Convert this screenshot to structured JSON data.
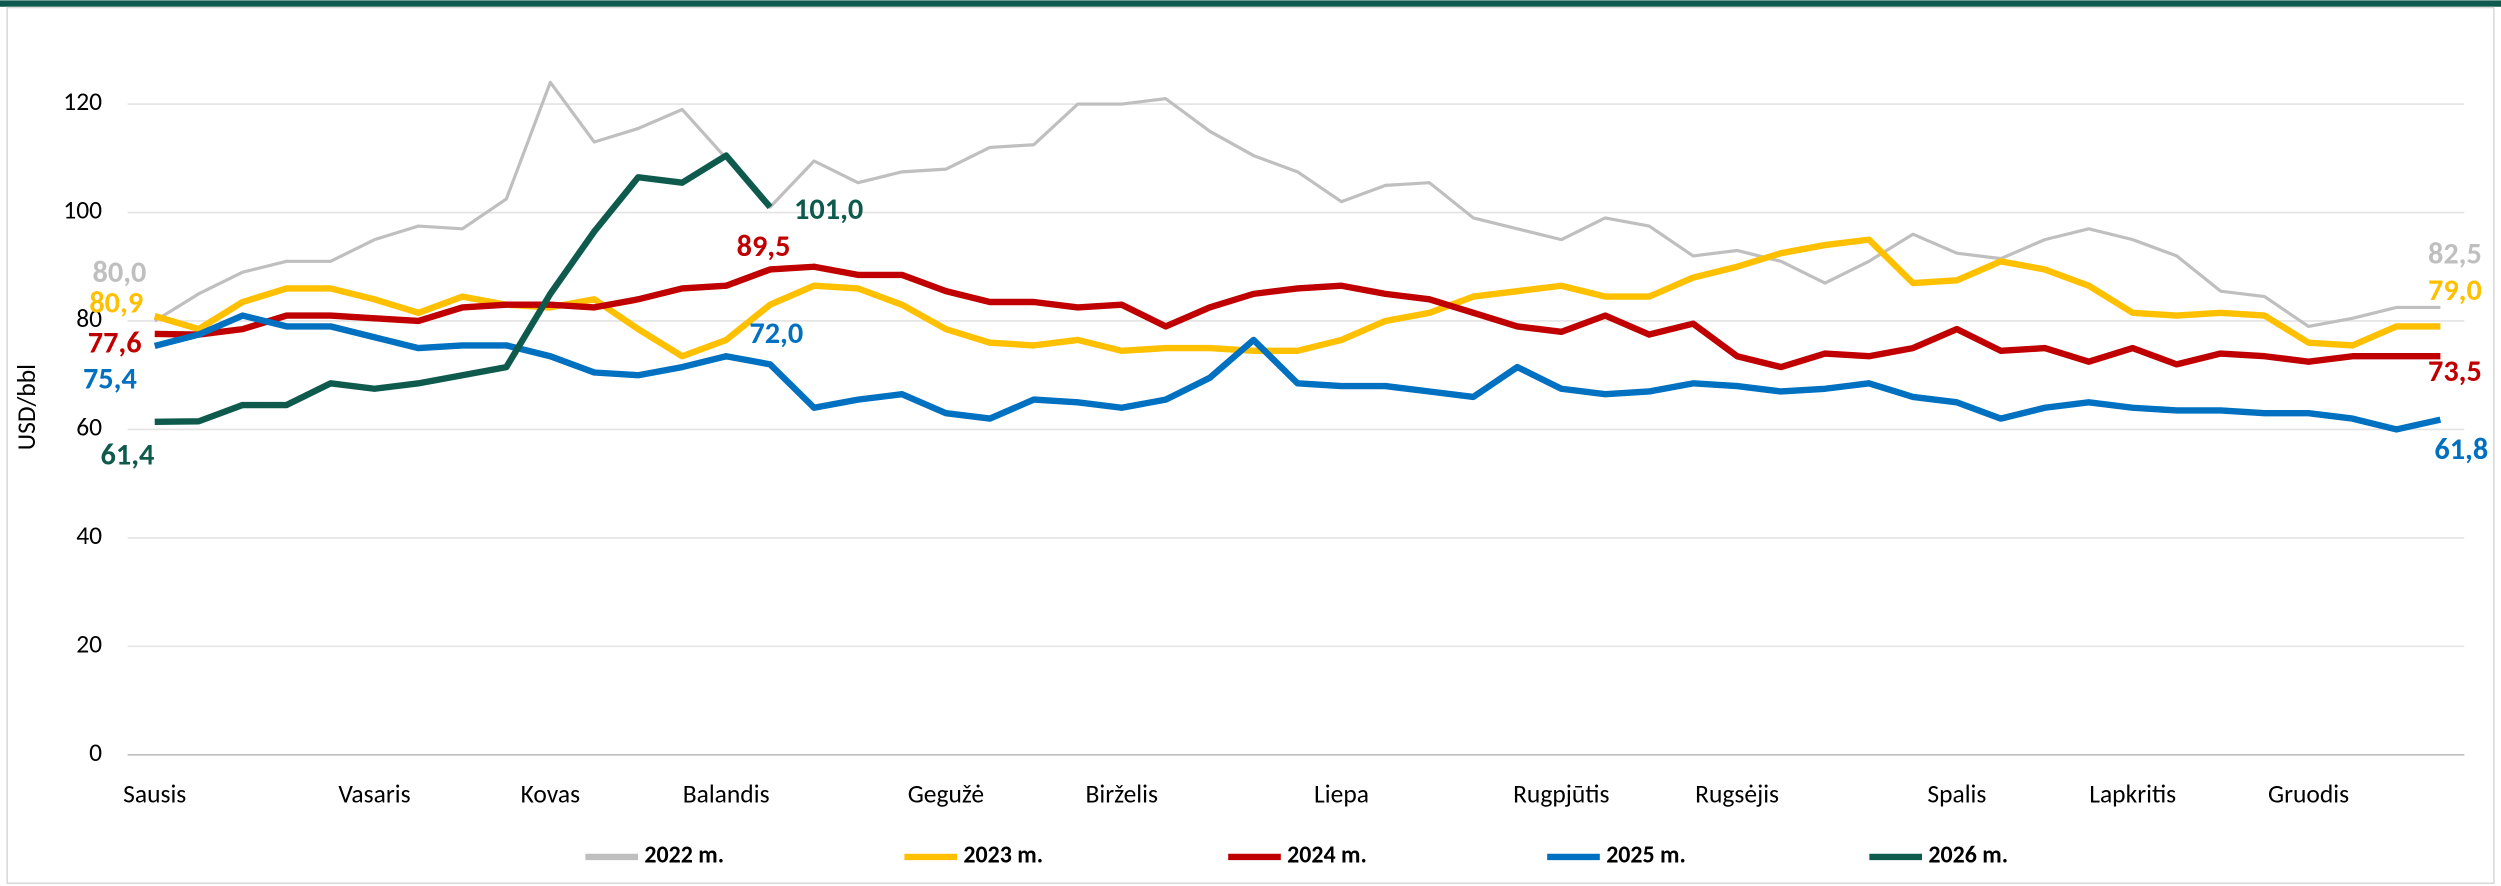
{
  "chart_data": {
    "type": "line",
    "y_label": "USD/bbl",
    "categories": [
      "Sausis",
      null,
      null,
      null,
      null,
      "Vasaris",
      null,
      null,
      null,
      "Kovas",
      null,
      null,
      null,
      "Balandis",
      null,
      null,
      null,
      null,
      "Gegužė",
      null,
      null,
      null,
      "Birželis",
      null,
      null,
      null,
      null,
      "Liepa",
      null,
      null,
      null,
      null,
      "Rugpjūtis",
      null,
      null,
      null,
      "Rugsėjis",
      null,
      null,
      null,
      null,
      "Spalis",
      null,
      null,
      null,
      "Lapkritis",
      null,
      null,
      null,
      "Gruodis",
      null,
      null,
      null
    ],
    "ylim": [
      0,
      130
    ],
    "yticks": [
      0,
      20,
      40,
      60,
      80,
      100,
      120
    ],
    "grid": true,
    "legend": "bottom",
    "series": [
      {
        "name": "2022 m.",
        "color": "#bfbfbf",
        "width": 2,
        "values": [
          80.0,
          85,
          89,
          91,
          91,
          95,
          97.5,
          97,
          102.5,
          124,
          113,
          115.5,
          119,
          110,
          101,
          109.5,
          105.5,
          107.5,
          108,
          112,
          112.5,
          120,
          120,
          121,
          115,
          110.5,
          107.5,
          102,
          105,
          105.5,
          99,
          97,
          95,
          99,
          97.5,
          92,
          93,
          91,
          87,
          91,
          96,
          92.5,
          91.5,
          95,
          97,
          95,
          92,
          85.5,
          84.5,
          79,
          80.5,
          82.5,
          82.5
        ],
        "value_labels": [
          "80,0",
          null,
          null,
          null,
          null,
          null,
          null,
          null,
          null,
          null,
          null,
          null,
          null,
          null,
          null,
          null,
          null,
          null,
          null,
          null,
          null,
          null,
          null,
          null,
          null,
          null,
          null,
          null,
          null,
          null,
          null,
          null,
          null,
          null,
          null,
          null,
          null,
          null,
          null,
          null,
          null,
          null,
          null,
          null,
          null,
          null,
          null,
          null,
          null,
          null,
          null,
          null,
          "82,5"
        ]
      },
      {
        "name": "2023 m.",
        "color": "#ffc000",
        "width": 4,
        "values": [
          80.9,
          78.5,
          83.5,
          86,
          86,
          84,
          81.5,
          84.5,
          83,
          82.5,
          84,
          78.5,
          73.5,
          76.5,
          83,
          86.5,
          86,
          83,
          78.5,
          76,
          75.5,
          76.5,
          74.5,
          75,
          75,
          74.5,
          74.5,
          76.5,
          80,
          81.5,
          84.5,
          85.5,
          86.5,
          84.5,
          84.5,
          88,
          90,
          92.5,
          94,
          95,
          87,
          87.5,
          91,
          89.5,
          86.5,
          81.5,
          81,
          81.5,
          81,
          76,
          75.5,
          79,
          79.0
        ],
        "value_labels": [
          "80,9",
          null,
          null,
          null,
          null,
          null,
          null,
          null,
          null,
          null,
          null,
          null,
          null,
          null,
          null,
          null,
          null,
          null,
          null,
          null,
          null,
          null,
          null,
          null,
          null,
          null,
          null,
          null,
          null,
          null,
          null,
          null,
          null,
          null,
          null,
          null,
          null,
          null,
          null,
          null,
          null,
          null,
          null,
          null,
          null,
          null,
          null,
          null,
          null,
          null,
          null,
          null,
          "79,0"
        ]
      },
      {
        "name": "2024 m.",
        "color": "#c00000",
        "width": 4,
        "values": [
          77.6,
          77.5,
          78.5,
          81,
          81,
          80.5,
          80,
          82.5,
          83,
          83,
          82.5,
          84,
          86,
          86.5,
          89.5,
          90,
          88.5,
          88.5,
          85.5,
          83.5,
          83.5,
          82.5,
          83,
          79,
          82.5,
          85,
          86,
          86.5,
          85,
          84,
          81.5,
          79,
          78,
          81,
          77.5,
          79.5,
          73.5,
          71.5,
          74,
          73.5,
          75,
          78.5,
          74.5,
          75,
          72.5,
          75,
          72,
          74,
          73.5,
          72.5,
          73.5,
          73.5,
          73.5
        ],
        "value_labels": [
          "77,6",
          null,
          null,
          null,
          null,
          null,
          null,
          null,
          null,
          null,
          null,
          null,
          null,
          null,
          "89,5",
          null,
          null,
          null,
          null,
          null,
          null,
          null,
          null,
          null,
          null,
          null,
          null,
          null,
          null,
          null,
          null,
          null,
          null,
          null,
          null,
          null,
          null,
          null,
          null,
          null,
          null,
          null,
          null,
          null,
          null,
          null,
          null,
          null,
          null,
          null,
          null,
          null,
          "73,5"
        ]
      },
      {
        "name": "2025 m.",
        "color": "#0070c0",
        "width": 4,
        "values": [
          75.4,
          77.5,
          81,
          79,
          79,
          77,
          75,
          75.5,
          75.5,
          73.5,
          70.5,
          70,
          71.5,
          73.5,
          72.0,
          64,
          65.5,
          66.5,
          63,
          62,
          65.5,
          65,
          64,
          65.5,
          69.5,
          76.5,
          68.5,
          68,
          68,
          67,
          66,
          71.5,
          67.5,
          66.5,
          67,
          68.5,
          68,
          67,
          67.5,
          68.5,
          66,
          65,
          62,
          64,
          65,
          64,
          63.5,
          63.5,
          63,
          63,
          62,
          60,
          61.8
        ],
        "value_labels": [
          "75,4",
          null,
          null,
          null,
          null,
          null,
          null,
          null,
          null,
          null,
          null,
          null,
          null,
          null,
          "72,0",
          null,
          null,
          null,
          null,
          null,
          null,
          null,
          null,
          null,
          null,
          null,
          null,
          null,
          null,
          null,
          null,
          null,
          null,
          null,
          null,
          null,
          null,
          null,
          null,
          null,
          null,
          null,
          null,
          null,
          null,
          null,
          null,
          null,
          null,
          null,
          null,
          null,
          "61,8"
        ]
      },
      {
        "name": "2026 m.",
        "color": "#0e5b4e",
        "width": 4,
        "values": [
          61.4,
          61.5,
          64.5,
          64.5,
          68.5,
          67.5,
          68.5,
          70,
          71.5,
          85,
          96.5,
          106.5,
          105.5,
          110.5,
          101.0,
          null,
          null,
          null,
          null,
          null,
          null,
          null,
          null,
          null,
          null,
          null,
          null,
          null,
          null,
          null,
          null,
          null,
          null,
          null,
          null,
          null,
          null,
          null,
          null,
          null,
          null,
          null,
          null,
          null,
          null,
          null,
          null,
          null,
          null,
          null,
          null,
          null,
          null
        ],
        "value_labels": [
          "61,4",
          null,
          null,
          null,
          null,
          null,
          null,
          null,
          null,
          null,
          null,
          null,
          null,
          null,
          "101,0",
          null,
          null,
          null,
          null,
          null,
          null,
          null,
          null,
          null,
          null,
          null,
          null,
          null,
          null,
          null,
          null,
          null,
          null,
          null,
          null,
          null,
          null,
          null,
          null,
          null,
          null,
          null,
          null,
          null,
          null,
          null,
          null,
          null,
          null,
          null,
          null,
          null,
          null
        ]
      }
    ]
  }
}
